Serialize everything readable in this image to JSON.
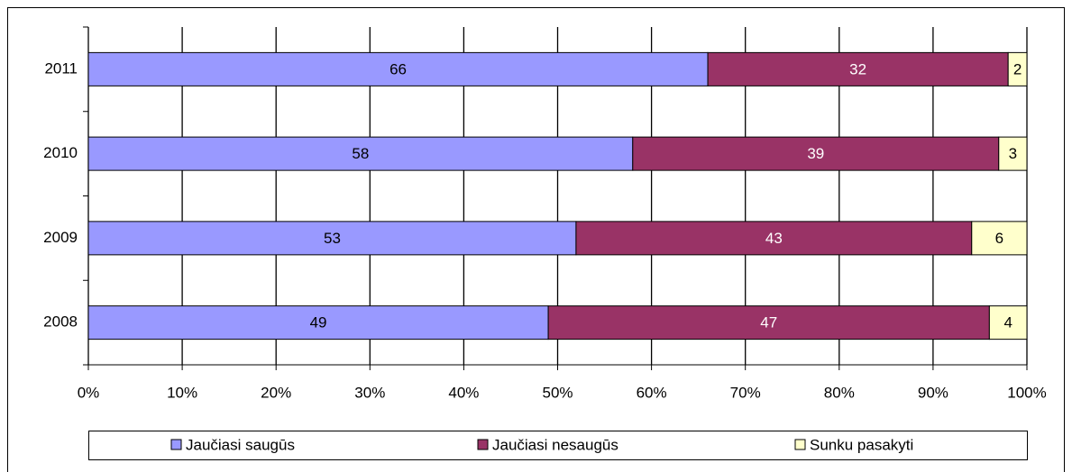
{
  "chart_data": {
    "type": "bar",
    "orientation": "horizontal",
    "stacked": "percent",
    "categories": [
      "2011",
      "2010",
      "2009",
      "2008"
    ],
    "series": [
      {
        "name": "Jaučiasi saugūs",
        "color": "#9999ff",
        "label_color": "#000000",
        "values": [
          66,
          58,
          53,
          49
        ]
      },
      {
        "name": "Jaučiasi nesaugūs",
        "color": "#993366",
        "label_color": "#ffffff",
        "values": [
          32,
          39,
          43,
          47
        ]
      },
      {
        "name": "Sunku pasakyti",
        "color": "#ffffcc",
        "label_color": "#000000",
        "values": [
          2,
          3,
          6,
          4
        ]
      }
    ],
    "xlim": [
      0,
      100
    ],
    "xticks": [
      {
        "value": 0,
        "label": "0%"
      },
      {
        "value": 10,
        "label": "10%"
      },
      {
        "value": 20,
        "label": "20%"
      },
      {
        "value": 30,
        "label": "30%"
      },
      {
        "value": 40,
        "label": "40%"
      },
      {
        "value": 50,
        "label": "50%"
      },
      {
        "value": 60,
        "label": "60%"
      },
      {
        "value": 70,
        "label": "70%"
      },
      {
        "value": 80,
        "label": "80%"
      },
      {
        "value": 90,
        "label": "90%"
      },
      {
        "value": 100,
        "label": "100%"
      }
    ],
    "grid": true,
    "legend": "bottom"
  }
}
